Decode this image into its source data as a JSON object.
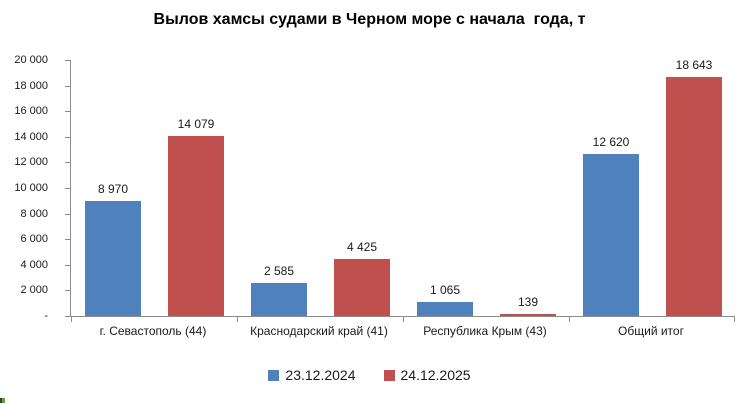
{
  "chart_data": {
    "type": "bar",
    "title": "Вылов хамсы судами в Черном море с начала  года, т",
    "categories": [
      "г. Севастополь (44)",
      "Краснодарский край (41)",
      "Республика Крым (43)",
      "Общий итог"
    ],
    "series": [
      {
        "name": "23.12.2024",
        "color": "#4F81BD",
        "values": [
          8970,
          2585,
          1065,
          12620
        ],
        "labels": [
          "8 970",
          "2 585",
          "1 065",
          "12 620"
        ]
      },
      {
        "name": "24.12.2025",
        "color": "#C0504D",
        "values": [
          14079,
          4425,
          139,
          18643
        ],
        "labels": [
          "14 079",
          "4 425",
          "139",
          "18 643"
        ]
      }
    ],
    "xlabel": "",
    "ylabel": "",
    "ylim": [
      0,
      20000
    ],
    "yticks": [
      {
        "label": "20 000",
        "value": 20000
      },
      {
        "label": "18 000",
        "value": 18000
      },
      {
        "label": "16 000",
        "value": 16000
      },
      {
        "label": "14 000",
        "value": 14000
      },
      {
        "label": "12 000",
        "value": 12000
      },
      {
        "label": "10 000",
        "value": 10000
      },
      {
        "label": "8 000",
        "value": 8000
      },
      {
        "label": "6 000",
        "value": 6000
      },
      {
        "label": "4 000",
        "value": 4000
      },
      {
        "label": "2 000",
        "value": 2000
      },
      {
        "label": "-",
        "value": 0
      }
    ],
    "grid": false,
    "legend_position": "bottom",
    "axis_color": "#8c8c8c"
  }
}
